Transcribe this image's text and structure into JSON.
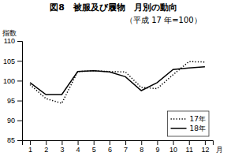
{
  "chart_data": {
    "type": "line",
    "title": "図8　被服及び履物　月別の動向",
    "subtitle": "（平成 17 年=100）",
    "x_label": "月",
    "y_label": "指数",
    "x": [
      1,
      2,
      3,
      4,
      5,
      6,
      7,
      8,
      9,
      10,
      11,
      12
    ],
    "series": [
      {
        "name": "17年",
        "color": "#000000",
        "line_style": "dotted",
        "values": [
          99.0,
          95.5,
          94.3,
          102.3,
          102.5,
          102.3,
          102.2,
          98.3,
          98.0,
          101.5,
          104.8,
          104.7
        ]
      },
      {
        "name": "18年",
        "color": "#000000",
        "line_style": "solid",
        "values": [
          99.5,
          96.5,
          96.5,
          102.3,
          102.5,
          102.2,
          101.0,
          97.5,
          99.5,
          102.8,
          103.2,
          103.5
        ]
      }
    ],
    "xlim": [
      0.5,
      12.5
    ],
    "xticks": [
      1,
      2,
      3,
      4,
      5,
      6,
      7,
      8,
      9,
      10,
      11,
      12
    ],
    "ylim": [
      85,
      110
    ],
    "yticks": [
      85,
      90,
      95,
      100,
      105,
      110
    ],
    "grid": false,
    "legend": "lower right"
  }
}
